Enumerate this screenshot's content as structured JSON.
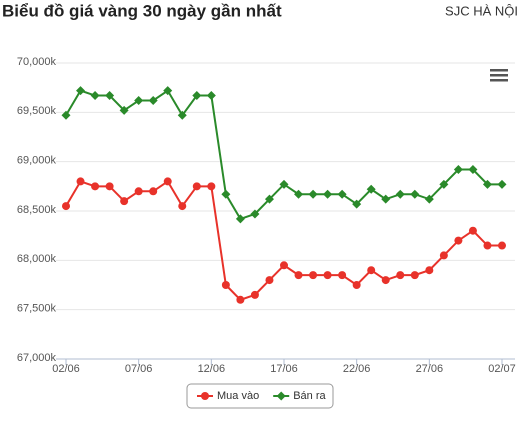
{
  "chart_data": {
    "type": "line",
    "title": "Biểu đồ giá vàng 30 ngày gần nhất",
    "subtitle": "SJC HÀ NỘI",
    "categories": [
      "02/06",
      null,
      null,
      null,
      null,
      "07/06",
      null,
      null,
      null,
      null,
      "12/06",
      null,
      null,
      null,
      null,
      "17/06",
      null,
      null,
      null,
      null,
      "22/06",
      null,
      null,
      null,
      null,
      "27/06",
      null,
      null,
      null,
      null,
      "02/07"
    ],
    "series": [
      {
        "name": "Mua vào",
        "color": "#e8322a",
        "marker": "circle",
        "values": [
          68550,
          68800,
          68750,
          68750,
          68600,
          68700,
          68700,
          68800,
          68550,
          68750,
          68750,
          67750,
          67600,
          67650,
          67800,
          67950,
          67850,
          67850,
          67850,
          67850,
          67750,
          67900,
          67800,
          67850,
          67850,
          67900,
          68050,
          68200,
          68300,
          68150,
          68150
        ]
      },
      {
        "name": "Bán ra",
        "color": "#2a8a2a",
        "marker": "diamond",
        "values": [
          69470,
          69720,
          69670,
          69670,
          69520,
          69620,
          69620,
          69720,
          69470,
          69670,
          69670,
          68670,
          68420,
          68470,
          68620,
          68770,
          68670,
          68670,
          68670,
          68670,
          68570,
          68720,
          68620,
          68670,
          68670,
          68620,
          68770,
          68920,
          68920,
          68770,
          68770
        ]
      }
    ],
    "ylim": [
      67000,
      70000
    ],
    "yticks": [
      {
        "value": 67000,
        "label": "67,000k"
      },
      {
        "value": 67500,
        "label": "67,500k"
      },
      {
        "value": 68000,
        "label": "68,000k"
      },
      {
        "value": 68500,
        "label": "68,500k"
      },
      {
        "value": 69000,
        "label": "69,000k"
      },
      {
        "value": 69500,
        "label": "69,500k"
      },
      {
        "value": 70000,
        "label": "70,000k"
      }
    ],
    "grid": true,
    "legend": "bottom"
  }
}
